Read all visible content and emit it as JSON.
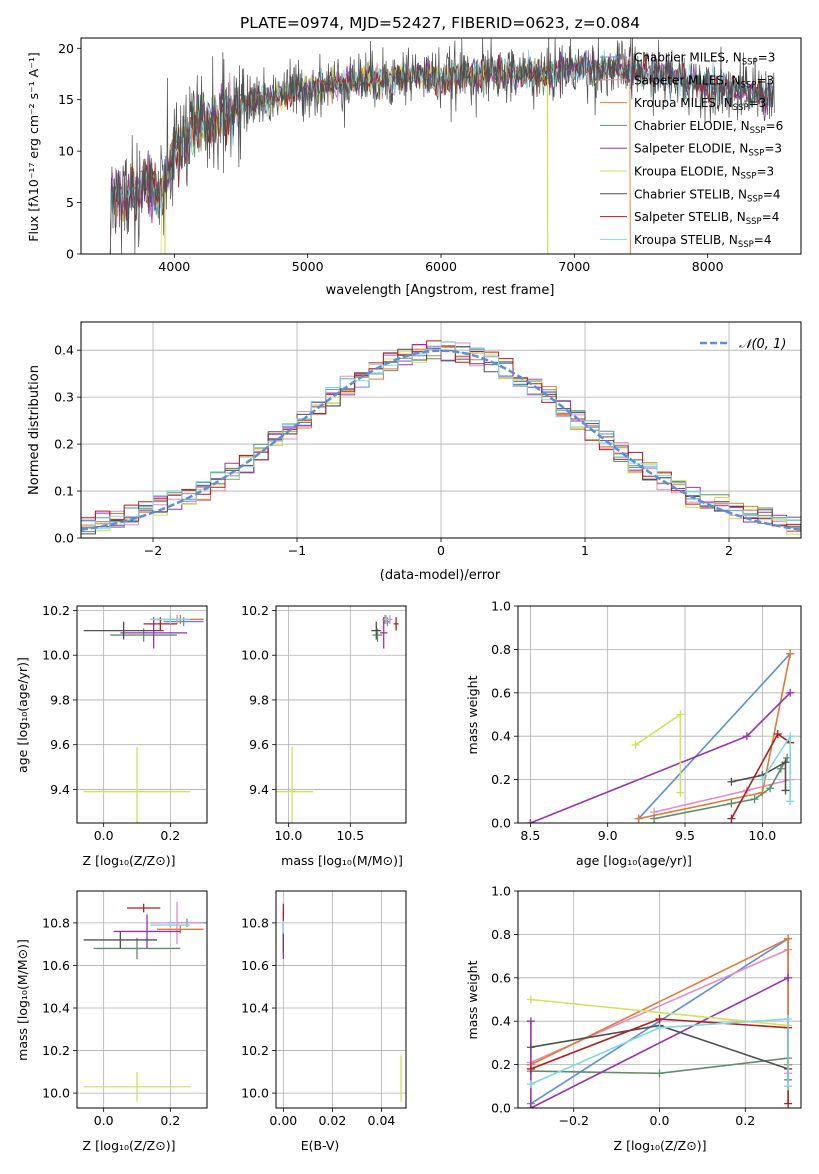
{
  "title": "PLATE=0974, MJD=52427, FIBERID=0623, z=0.084",
  "series_styles": [
    {
      "name": "Chabrier MILES, N_SSP=3",
      "color": "#5b8fd9"
    },
    {
      "name": "Salpeter MILES, N_SSP=3",
      "color": "#e78ac3"
    },
    {
      "name": "Kroupa MILES, N_SSP=3",
      "color": "#e07b39"
    },
    {
      "name": "Chabrier ELODIE, N_SSP=6",
      "color": "#5f8f6a"
    },
    {
      "name": "Salpeter ELODIE, N_SSP=3",
      "color": "#9a32b0"
    },
    {
      "name": "Kroupa ELODIE, N_SSP=3",
      "color": "#d4e157"
    },
    {
      "name": "Chabrier STELIB, N_SSP=4",
      "color": "#505050"
    },
    {
      "name": "Salpeter STELIB, N_SSP=4",
      "color": "#b01e1e"
    },
    {
      "name": "Kroupa STELIB, N_SSP=4",
      "color": "#80d8e0"
    }
  ],
  "labels": {
    "spec_x": "wavelength [Angstrom, rest frame]",
    "spec_y": "Flux [fλ10⁻¹⁷ erg cm⁻² s⁻¹ A⁻¹]",
    "hist_x": "(data-model)/error",
    "hist_y": "Normed distribution",
    "hist_legend": "𝒩(0, 1)",
    "z_axis": "Z [log₁₀(Z/Z⊙)]",
    "age_axis": "age  [log₁₀(age/yr)]",
    "mass_axis": "mass [log₁₀(M/M⊙)]",
    "ebv_axis": "E(B-V)",
    "weight_axis": "mass weight"
  },
  "chart_data": [
    {
      "id": "spectrum",
      "type": "line",
      "xlim": [
        3300,
        8700
      ],
      "ylim": [
        0,
        21
      ],
      "xticks": [
        4000,
        5000,
        6000,
        7000,
        8000
      ],
      "yticks": [
        0,
        5,
        10,
        15,
        20
      ],
      "envelope": {
        "x": [
          3520,
          3600,
          3700,
          3800,
          3900,
          4000,
          4100,
          4200,
          4300,
          4400,
          4500,
          4600,
          4700,
          4800,
          4900,
          5000,
          5200,
          5400,
          5600,
          5800,
          6000,
          6200,
          6400,
          6600,
          6800,
          7000,
          7200,
          7400,
          7600,
          7800,
          8000,
          8200,
          8400
        ],
        "y": [
          5.5,
          5.8,
          6.0,
          7.0,
          5.5,
          10.0,
          11.5,
          12.5,
          13.0,
          13.5,
          14.5,
          15.0,
          15.0,
          15.5,
          16.0,
          16.0,
          16.5,
          17.0,
          17.0,
          17.5,
          17.0,
          17.5,
          17.5,
          17.5,
          17.5,
          18.0,
          18.0,
          18.0,
          17.5,
          17.0,
          16.5,
          16.0,
          15.5
        ]
      },
      "grid": false
    },
    {
      "id": "residual_hist",
      "type": "histogram",
      "xlim": [
        -2.5,
        2.5
      ],
      "ylim": [
        0,
        0.46
      ],
      "xticks": [
        -2,
        -1,
        0,
        1,
        2
      ],
      "yticks": [
        0,
        0.1,
        0.2,
        0.3,
        0.4
      ],
      "bin_width": 0.1,
      "reference": "normal(0,1)",
      "grid": true
    },
    {
      "id": "age_vs_Z",
      "type": "scatter",
      "xlim": [
        -0.08,
        0.31
      ],
      "ylim": [
        9.25,
        10.22
      ],
      "xticks": [
        0.0,
        0.2
      ],
      "yticks": [
        9.4,
        9.6,
        9.8,
        10.0,
        10.2
      ],
      "points": [
        {
          "s": 0,
          "x": 0.24,
          "y": 10.15,
          "ex": 0.06,
          "ey": 0.02
        },
        {
          "s": 1,
          "x": 0.22,
          "y": 10.16,
          "ex": 0.08,
          "ey": 0.02
        },
        {
          "s": 2,
          "x": 0.23,
          "y": 10.16,
          "ex": 0.07,
          "ey": 0.02
        },
        {
          "s": 3,
          "x": 0.12,
          "y": 10.09,
          "ex": 0.1,
          "ey": 0.03
        },
        {
          "s": 4,
          "x": 0.15,
          "y": 10.1,
          "ex": 0.1,
          "ey": 0.07
        },
        {
          "s": 5,
          "x": 0.1,
          "y": 9.39,
          "ex": 0.16,
          "ey": 0.2
        },
        {
          "s": 6,
          "x": 0.06,
          "y": 10.11,
          "ex": 0.12,
          "ey": 0.04
        },
        {
          "s": 7,
          "x": 0.17,
          "y": 10.14,
          "ex": 0.05,
          "ey": 0.03
        },
        {
          "s": 8,
          "x": 0.2,
          "y": 10.16,
          "ex": 0.06,
          "ey": 0.02
        }
      ],
      "grid": true
    },
    {
      "id": "age_vs_mass",
      "type": "scatter",
      "xlim": [
        9.9,
        10.95
      ],
      "ylim": [
        9.25,
        10.22
      ],
      "xticks": [
        10.0,
        10.5
      ],
      "yticks": [
        9.4,
        9.6,
        9.8,
        10.0,
        10.2
      ],
      "points": [
        {
          "s": 0,
          "x": 10.8,
          "y": 10.15,
          "ex": 0.02,
          "ey": 0.02
        },
        {
          "s": 1,
          "x": 10.82,
          "y": 10.16,
          "ex": 0.02,
          "ey": 0.02
        },
        {
          "s": 2,
          "x": 10.78,
          "y": 10.16,
          "ex": 0.02,
          "ey": 0.02
        },
        {
          "s": 3,
          "x": 10.72,
          "y": 10.09,
          "ex": 0.04,
          "ey": 0.03
        },
        {
          "s": 4,
          "x": 10.77,
          "y": 10.1,
          "ex": 0.03,
          "ey": 0.07
        },
        {
          "s": 5,
          "x": 10.03,
          "y": 9.39,
          "ex": 0.17,
          "ey": 0.2
        },
        {
          "s": 6,
          "x": 10.71,
          "y": 10.11,
          "ex": 0.04,
          "ey": 0.04
        },
        {
          "s": 7,
          "x": 10.87,
          "y": 10.14,
          "ex": 0.02,
          "ey": 0.03
        },
        {
          "s": 8,
          "x": 10.79,
          "y": 10.16,
          "ex": 0.02,
          "ey": 0.02
        }
      ],
      "grid": true
    },
    {
      "id": "weight_vs_age",
      "type": "line",
      "xlim": [
        8.42,
        10.25
      ],
      "ylim": [
        0,
        1
      ],
      "xticks": [
        8.5,
        9.0,
        9.5,
        10.0
      ],
      "yticks": [
        0,
        0.2,
        0.4,
        0.6,
        0.8,
        1.0
      ],
      "series": [
        {
          "s": 0,
          "x": [
            9.2,
            10.18
          ],
          "y": [
            0.02,
            0.78
          ]
        },
        {
          "s": 1,
          "x": [
            9.3,
            9.9,
            10.18
          ],
          "y": [
            0.05,
            0.15,
            0.2
          ]
        },
        {
          "s": 2,
          "x": [
            9.2,
            10.0,
            10.18
          ],
          "y": [
            0.02,
            0.14,
            0.78
          ]
        },
        {
          "s": 3,
          "x": [
            9.3,
            9.8,
            9.95,
            10.05,
            10.12,
            10.16
          ],
          "y": [
            0.02,
            0.09,
            0.11,
            0.16,
            0.25,
            0.3
          ]
        },
        {
          "s": 4,
          "x": [
            8.5,
            9.9,
            10.18
          ],
          "y": [
            0.0,
            0.4,
            0.6
          ]
        },
        {
          "s": 5,
          "x": [
            9.18,
            9.47,
            9.47
          ],
          "y": [
            0.36,
            0.5,
            0.14
          ]
        },
        {
          "s": 6,
          "x": [
            9.8,
            10.0,
            10.15,
            10.15
          ],
          "y": [
            0.19,
            0.22,
            0.28,
            0.15
          ]
        },
        {
          "s": 7,
          "x": [
            9.8,
            10.1,
            10.18
          ],
          "y": [
            0.02,
            0.41,
            0.37
          ]
        },
        {
          "s": 8,
          "x": [
            10.0,
            10.18,
            10.18
          ],
          "y": [
            0.2,
            0.4,
            0.1
          ]
        }
      ],
      "grid": true
    },
    {
      "id": "mass_vs_Z",
      "type": "scatter",
      "xlim": [
        -0.08,
        0.31
      ],
      "ylim": [
        9.93,
        10.95
      ],
      "xticks": [
        0.0,
        0.2
      ],
      "yticks": [
        10.0,
        10.2,
        10.4,
        10.6,
        10.8
      ],
      "points": [
        {
          "s": 0,
          "x": 0.25,
          "y": 10.8,
          "ex": 0.06,
          "ey": 0.02
        },
        {
          "s": 1,
          "x": 0.22,
          "y": 10.8,
          "ex": 0.08,
          "ey": 0.1
        },
        {
          "s": 2,
          "x": 0.23,
          "y": 10.77,
          "ex": 0.07,
          "ey": 0.02
        },
        {
          "s": 3,
          "x": 0.1,
          "y": 10.68,
          "ex": 0.13,
          "ey": 0.05
        },
        {
          "s": 4,
          "x": 0.13,
          "y": 10.76,
          "ex": 0.1,
          "ey": 0.08
        },
        {
          "s": 5,
          "x": 0.1,
          "y": 10.03,
          "ex": 0.16,
          "ey": 0.07
        },
        {
          "s": 6,
          "x": 0.05,
          "y": 10.72,
          "ex": 0.11,
          "ey": 0.04
        },
        {
          "s": 7,
          "x": 0.12,
          "y": 10.87,
          "ex": 0.05,
          "ey": 0.02
        },
        {
          "s": 8,
          "x": 0.2,
          "y": 10.79,
          "ex": 0.06,
          "ey": 0.02
        }
      ],
      "grid": true
    },
    {
      "id": "mass_vs_ebv",
      "type": "scatter",
      "xlim": [
        -0.003,
        0.05
      ],
      "ylim": [
        9.93,
        10.95
      ],
      "xticks": [
        0.0,
        0.02,
        0.04
      ],
      "yticks": [
        10.0,
        10.2,
        10.4,
        10.6,
        10.8
      ],
      "points": [
        {
          "s": 0,
          "x": 0.0,
          "y": 10.8,
          "ex": 0,
          "ey": 0.04
        },
        {
          "s": 1,
          "x": 0.0,
          "y": 10.79,
          "ex": 0,
          "ey": 0.06
        },
        {
          "s": 2,
          "x": 0.0,
          "y": 10.77,
          "ex": 0,
          "ey": 0.03
        },
        {
          "s": 3,
          "x": 0.0,
          "y": 10.7,
          "ex": 0,
          "ey": 0.05
        },
        {
          "s": 4,
          "x": 0.0,
          "y": 10.72,
          "ex": 0,
          "ey": 0.09
        },
        {
          "s": 5,
          "x": 0.048,
          "y": 10.07,
          "ex": 0,
          "ey": 0.11
        },
        {
          "s": 6,
          "x": 0.0,
          "y": 10.7,
          "ex": 0,
          "ey": 0.04
        },
        {
          "s": 7,
          "x": 0.0,
          "y": 10.85,
          "ex": 0,
          "ey": 0.04
        },
        {
          "s": 8,
          "x": 0.0,
          "y": 10.78,
          "ex": 0,
          "ey": 0.03
        }
      ],
      "grid": true
    },
    {
      "id": "weight_vs_Z",
      "type": "line",
      "xlim": [
        -0.33,
        0.33
      ],
      "ylim": [
        0,
        1
      ],
      "xticks": [
        -0.2,
        0.0,
        0.2
      ],
      "yticks": [
        0,
        0.2,
        0.4,
        0.6,
        0.8,
        1.0
      ],
      "series": [
        {
          "s": 0,
          "x": [
            -0.3,
            0.3,
            0.3
          ],
          "y": [
            0.02,
            0.78,
            0.2
          ]
        },
        {
          "s": 1,
          "x": [
            -0.3,
            0.3,
            0.3
          ],
          "y": [
            0.21,
            0.73,
            0.16
          ]
        },
        {
          "s": 2,
          "x": [
            -0.3,
            0.3,
            0.3
          ],
          "y": [
            0.2,
            0.78,
            0.2
          ]
        },
        {
          "s": 3,
          "x": [
            -0.3,
            0.0,
            0.3,
            0.3
          ],
          "y": [
            0.17,
            0.16,
            0.23,
            0.13
          ]
        },
        {
          "s": 4,
          "x": [
            -0.3,
            -0.3,
            0.3
          ],
          "y": [
            0.4,
            0.0,
            0.6
          ]
        },
        {
          "s": 5,
          "x": [
            -0.3,
            0.3
          ],
          "y": [
            0.5,
            0.38
          ]
        },
        {
          "s": 6,
          "x": [
            -0.3,
            0.0,
            0.3
          ],
          "y": [
            0.28,
            0.38,
            0.18
          ]
        },
        {
          "s": 7,
          "x": [
            -0.3,
            0.0,
            0.3,
            0.3
          ],
          "y": [
            0.18,
            0.41,
            0.37,
            0.02
          ]
        },
        {
          "s": 8,
          "x": [
            -0.3,
            0.0,
            0.3,
            0.3
          ],
          "y": [
            0.11,
            0.37,
            0.41,
            0.1
          ]
        }
      ],
      "grid": true
    }
  ]
}
